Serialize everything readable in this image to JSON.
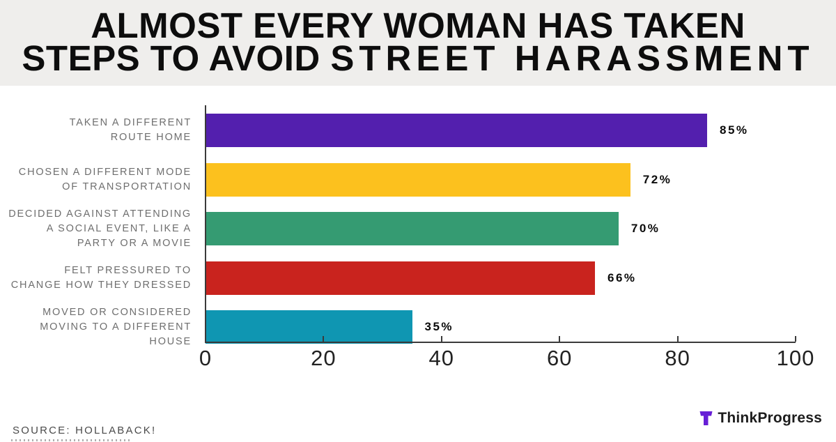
{
  "title": {
    "line1": "ALMOST EVERY WOMAN HAS TAKEN",
    "line2_prefix": "STEPS TO AVOID ",
    "line2_emphasis": "STREET HARASSMENT"
  },
  "chart_data": {
    "type": "bar",
    "orientation": "horizontal",
    "categories": [
      "TAKEN A DIFFERENT ROUTE HOME",
      "CHOSEN A DIFFERENT MODE OF TRANSPORTATION",
      "DECIDED AGAINST ATTENDING A SOCIAL EVENT, LIKE A PARTY OR A MOVIE",
      "FELT PRESSURED TO CHANGE HOW THEY DRESSED",
      "MOVED OR CONSIDERED MOVING TO A DIFFERENT HOUSE"
    ],
    "values": [
      85,
      72,
      70,
      66,
      35
    ],
    "rows": [
      {
        "lines": [
          "TAKEN A DIFFERENT",
          "ROUTE HOME"
        ],
        "value": 85,
        "value_label": "85%",
        "color": "#531fae"
      },
      {
        "lines": [
          "CHOSEN A DIFFERENT MODE",
          "OF TRANSPORTATION"
        ],
        "value": 72,
        "value_label": "72%",
        "color": "#fcc11e"
      },
      {
        "lines": [
          "DECIDED AGAINST ATTENDING",
          "A SOCIAL EVENT, LIKE A",
          "PARTY OR A MOVIE"
        ],
        "value": 70,
        "value_label": "70%",
        "color": "#359b72"
      },
      {
        "lines": [
          "FELT PRESSURED TO",
          "CHANGE HOW THEY DRESSED"
        ],
        "value": 66,
        "value_label": "66%",
        "color": "#c9231e"
      },
      {
        "lines": [
          "MOVED OR CONSIDERED",
          "MOVING TO A DIFFERENT HOUSE"
        ],
        "value": 35,
        "value_label": "35%",
        "color": "#0f96b2"
      }
    ],
    "x_ticks": [
      0,
      20,
      40,
      60,
      80,
      100
    ],
    "xlim": [
      0,
      100
    ],
    "xlabel": "",
    "ylabel": "",
    "grid": false,
    "legend": false
  },
  "footer": {
    "source": "SOURCE: HOLLABACK!",
    "brand": "ThinkProgress",
    "brand_color": "#671fd6"
  }
}
